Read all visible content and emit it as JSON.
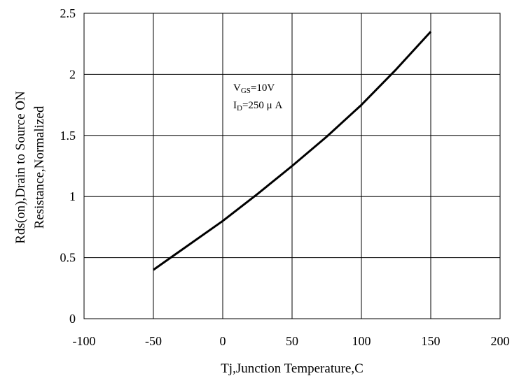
{
  "chart_data": {
    "type": "line",
    "title": "",
    "xlabel": "Tj,Junction Temperature,C",
    "ylabel_lines": [
      "Rds(on),Drain to Source ON",
      "Resistance,Normalized"
    ],
    "xlim": [
      -100,
      200
    ],
    "ylim": [
      0,
      2.5
    ],
    "x_ticks": [
      -100,
      -50,
      0,
      50,
      100,
      150,
      200
    ],
    "x_tick_labels": [
      "-100",
      "-50",
      "0",
      "50",
      "100",
      "150",
      "200"
    ],
    "y_ticks": [
      0,
      0.5,
      1,
      1.5,
      2,
      2.5
    ],
    "y_tick_labels": [
      "0",
      "0.5",
      "1",
      "1.5",
      "2",
      "2.5"
    ],
    "grid": true,
    "series": [
      {
        "x": [
          -50,
          -25,
          0,
          25,
          50,
          75,
          100,
          125,
          150
        ],
        "y": [
          0.4,
          0.6,
          0.8,
          1.02,
          1.25,
          1.49,
          1.75,
          2.04,
          2.35
        ]
      }
    ],
    "annotation": {
      "vgs": {
        "main": "V",
        "sub": "GS",
        "rest": "=10V"
      },
      "id": {
        "main": "I",
        "sub": "D",
        "rest": "=250 μ A"
      }
    },
    "line_color": "#000000",
    "grid_color": "#000000"
  }
}
